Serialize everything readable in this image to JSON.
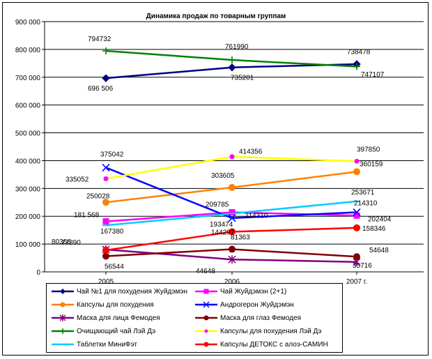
{
  "chart_data": {
    "type": "line",
    "title": "Динамика продаж по товарным группам",
    "categories": [
      "2005",
      "2006",
      "2007 г."
    ],
    "ylim": [
      0,
      900000
    ],
    "yticks": [
      "0",
      "100 000",
      "200 000",
      "300 000",
      "400 000",
      "500 000",
      "600 000",
      "700 000",
      "800 000",
      "900 000"
    ],
    "grid": true,
    "legend": "bottom",
    "series": [
      {
        "name": "Чай №1 для похудения Жуйдэмэн",
        "color": "#000080",
        "marker": "diamond",
        "values": [
          696506,
          735201,
          747107
        ],
        "labels": [
          "696 506",
          "735201",
          "747107"
        ]
      },
      {
        "name": "Чай Жуйдэмэн (2+1)",
        "color": "#ff00ff",
        "marker": "square",
        "values": [
          181568,
          214310,
          202404
        ],
        "labels": [
          "181 568",
          "214310",
          "202404"
        ]
      },
      {
        "name": "Капсулы для похудения",
        "color": "#ff8000",
        "marker": "circle",
        "values": [
          250028,
          303605,
          360159
        ],
        "labels": [
          "250028",
          "303605",
          "360159"
        ]
      },
      {
        "name": "Андрогерон Жуйдэмэн",
        "color": "#0000ff",
        "marker": "x",
        "values": [
          375042,
          193474,
          214310
        ],
        "labels": [
          "375042",
          "193474",
          "214310"
        ]
      },
      {
        "name": "Маска для лица Фемодея",
        "color": "#800080",
        "marker": "star",
        "values": [
          80366,
          44648,
          35716
        ],
        "labels": [
          "80366",
          "44648",
          "35716"
        ]
      },
      {
        "name": "Маска для глаз Фемодея",
        "color": "#800000",
        "marker": "circle",
        "values": [
          56544,
          81363,
          54648
        ],
        "labels": [
          "56544",
          "81363",
          "54648"
        ]
      },
      {
        "name": "Очищающий чай Лэй Дэ",
        "color": "#008000",
        "marker": "plus",
        "values": [
          794732,
          761990,
          738478
        ],
        "labels": [
          "794732",
          "761990",
          "738478"
        ]
      },
      {
        "name": "Капсулы для похудения Лэй Дэ",
        "color": "#ffff00",
        "marker": "dot",
        "markerColor": "#ff00ff",
        "values": [
          335052,
          414356,
          397850
        ],
        "labels": [
          "335052",
          "414356",
          "397850"
        ]
      },
      {
        "name": "Таблетки МиниФэт",
        "color": "#00ccff",
        "marker": "dash",
        "values": [
          167380,
          209785,
          253671
        ],
        "labels": [
          "167380",
          "209785",
          "253671"
        ]
      },
      {
        "name": "Капсулы ДЕТОКС с алоэ-САМИН",
        "color": "#ff0000",
        "marker": "circle",
        "values": [
          77890,
          144297,
          158346
        ],
        "labels": [
          "77890",
          "144297",
          "158346"
        ]
      }
    ]
  }
}
